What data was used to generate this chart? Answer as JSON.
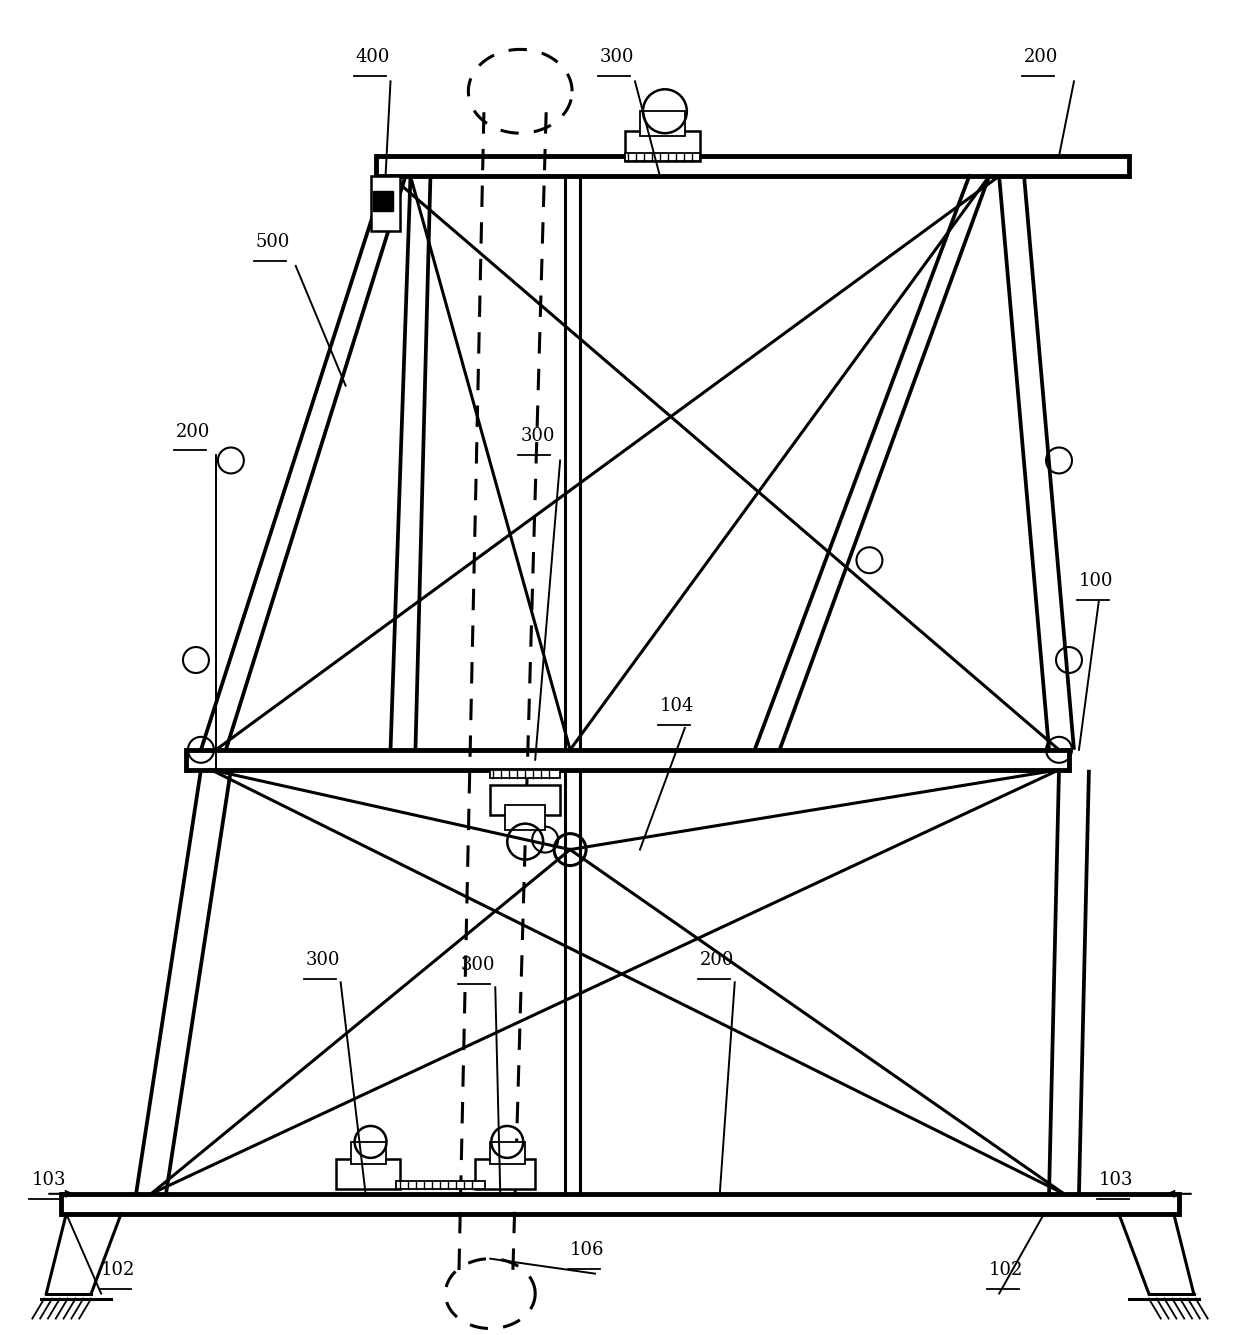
{
  "fig_width": 12.4,
  "fig_height": 13.35,
  "bg_color": "#ffffff",
  "line_color": "#000000",
  "lw_main": 2.2,
  "lw_thick": 3.5,
  "lw_thin": 1.3,
  "label_fs": 13
}
